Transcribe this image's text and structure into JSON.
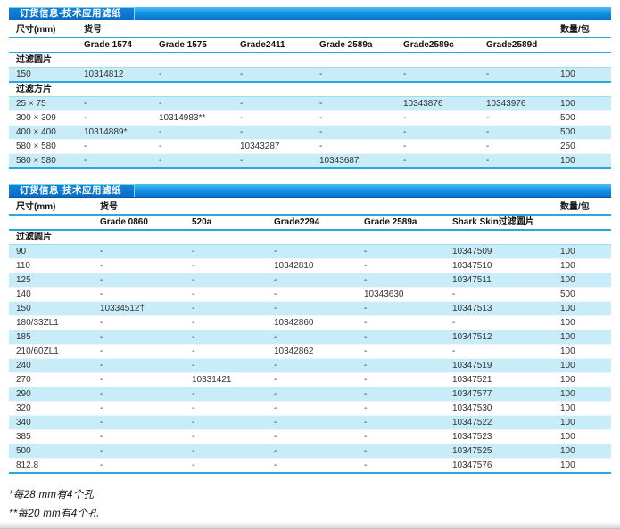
{
  "colors": {
    "accent_blue": "#2aa6e0",
    "stripe_cyan": "#c8ecf8",
    "title_bar_top": "#4fbdf4",
    "title_bar_bottom": "#0a74cd"
  },
  "tables": [
    {
      "title": "订货信息-技术应用滤纸",
      "size_header": "尺寸(mm)",
      "catalog_header": "货号",
      "qty_header": "数量/包",
      "grade_columns": [
        "Grade 1574",
        "Grade 1575",
        "Grade2411",
        "Grade 2589a",
        "Grade2589c",
        "Grade2589d"
      ],
      "sections": [
        {
          "label": "过滤圆片",
          "rows": [
            {
              "size": "150",
              "values": [
                "10314812",
                "-",
                "-",
                "-",
                "-",
                "-"
              ],
              "qty": "100"
            }
          ]
        },
        {
          "label": "过滤方片",
          "rows": [
            {
              "size": "25 × 75",
              "values": [
                "-",
                "-",
                "-",
                "-",
                "10343876",
                "10343976"
              ],
              "qty": "100"
            },
            {
              "size": "300 × 309",
              "values": [
                "-",
                "10314983**",
                "-",
                "-",
                "-",
                "-"
              ],
              "qty": "500"
            },
            {
              "size": "400 × 400",
              "values": [
                "10314889*",
                "-",
                "-",
                "-",
                "-",
                "-"
              ],
              "qty": "500"
            },
            {
              "size": "580 × 580",
              "values": [
                "-",
                "-",
                "10343287",
                "-",
                "-",
                "-"
              ],
              "qty": "250"
            },
            {
              "size": "580 × 580",
              "values": [
                "-",
                "-",
                "-",
                "10343687",
                "-",
                "-"
              ],
              "qty": "100"
            }
          ]
        }
      ]
    },
    {
      "title": "订货信息-技术应用滤纸",
      "size_header": "尺寸(mm)",
      "catalog_header": "货号",
      "qty_header": "数量/包",
      "grade_columns": [
        "Grade 0860",
        "520a",
        "Grade2294",
        "Grade 2589a",
        "Shark Skin过滤圆片"
      ],
      "sections": [
        {
          "label": "过滤圆片",
          "rows": [
            {
              "size": "90",
              "values": [
                "-",
                "-",
                "-",
                "-",
                "10347509"
              ],
              "qty": "100"
            },
            {
              "size": "110",
              "values": [
                "-",
                "-",
                "10342810",
                "-",
                "10347510"
              ],
              "qty": "100"
            },
            {
              "size": "125",
              "values": [
                "-",
                "-",
                "-",
                "-",
                "10347511"
              ],
              "qty": "100"
            },
            {
              "size": "140",
              "values": [
                "-",
                "-",
                "-",
                "10343630",
                "-"
              ],
              "qty": "500"
            },
            {
              "size": "150",
              "values": [
                "10334512†",
                "-",
                "-",
                "-",
                "10347513"
              ],
              "qty": "100"
            },
            {
              "size": "180/33ZL1",
              "values": [
                "-",
                "-",
                "10342860",
                "-",
                "-"
              ],
              "qty": "100"
            },
            {
              "size": "185",
              "values": [
                "-",
                "-",
                "-",
                "-",
                "10347512"
              ],
              "qty": "100"
            },
            {
              "size": "210/60ZL1",
              "values": [
                "-",
                "-",
                "10342862",
                "-",
                "-"
              ],
              "qty": "100"
            },
            {
              "size": "240",
              "values": [
                "-",
                "-",
                "-",
                "-",
                "10347519"
              ],
              "qty": "100"
            },
            {
              "size": "270",
              "values": [
                "-",
                "10331421",
                "-",
                "-",
                "10347521"
              ],
              "qty": "100"
            },
            {
              "size": "290",
              "values": [
                "-",
                "-",
                "-",
                "-",
                "10347577"
              ],
              "qty": "100"
            },
            {
              "size": "320",
              "values": [
                "-",
                "-",
                "-",
                "-",
                "10347530"
              ],
              "qty": "100"
            },
            {
              "size": "340",
              "values": [
                "-",
                "-",
                "-",
                "-",
                "10347522"
              ],
              "qty": "100"
            },
            {
              "size": "385",
              "values": [
                "-",
                "-",
                "-",
                "-",
                "10347523"
              ],
              "qty": "100"
            },
            {
              "size": "500",
              "values": [
                "-",
                "-",
                "-",
                "-",
                "10347525"
              ],
              "qty": "100"
            },
            {
              "size": "812.8",
              "values": [
                "-",
                "-",
                "-",
                "-",
                "10347576"
              ],
              "qty": "100"
            }
          ]
        }
      ]
    }
  ],
  "footnotes": [
    "*每28 mm有4个孔",
    "**每20 mm有4个孔"
  ]
}
